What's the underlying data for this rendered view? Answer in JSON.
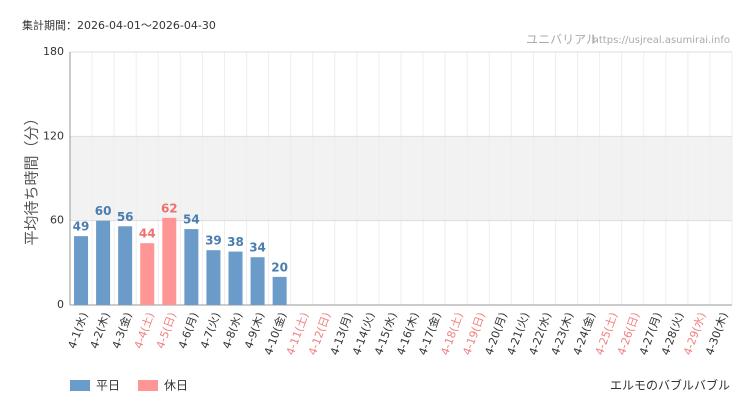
{
  "chart_data": {
    "type": "bar",
    "period": "集計期間：2026-04-01～2026-04-30",
    "site_name": "ユニバリアル",
    "site_url": "https://usjreal.asumirai.info",
    "attraction": "エルモのバブルバブル",
    "y_label": "平均待ち時間（分）",
    "categories": [
      "4-1(水)",
      "4-2(木)",
      "4-3(金)",
      "4-4(土)",
      "4-5(日)",
      "4-6(月)",
      "4-7(火)",
      "4-8(水)",
      "4-9(木)",
      "4-10(金)",
      "4-11(土)",
      "4-12(日)",
      "4-13(月)",
      "4-14(火)",
      "4-15(水)",
      "4-16(木)",
      "4-17(金)",
      "4-18(土)",
      "4-19(日)",
      "4-20(月)",
      "4-21(火)",
      "4-22(水)",
      "4-23(木)",
      "4-24(金)",
      "4-25(土)",
      "4-26(日)",
      "4-27(月)",
      "4-28(火)",
      "4-29(水)",
      "4-30(木)"
    ],
    "category_label_colors": [
      "#333",
      "#333",
      "#333",
      "#f08080",
      "#f08080",
      "#333",
      "#333",
      "#333",
      "#333",
      "#333",
      "#f08080",
      "#f08080",
      "#333",
      "#333",
      "#333",
      "#333",
      "#333",
      "#f08080",
      "#f08080",
      "#333",
      "#333",
      "#333",
      "#333",
      "#333",
      "#f08080",
      "#f08080",
      "#333",
      "#333",
      "#f08080",
      "#333"
    ],
    "series": [
      {
        "name": "平日",
        "color": "#6b9bc8",
        "label_color": "#4a7db0",
        "values": [
          49,
          60,
          56,
          null,
          null,
          54,
          39,
          38,
          34,
          20,
          null,
          null,
          null,
          null,
          null,
          null,
          null,
          null,
          null,
          null,
          null,
          null,
          null,
          null,
          null,
          null,
          null,
          null,
          null,
          null
        ]
      },
      {
        "name": "休日",
        "color": "#ff9696",
        "label_color": "#f07070",
        "values": [
          null,
          null,
          null,
          44,
          62,
          null,
          null,
          null,
          null,
          null,
          null,
          null,
          null,
          null,
          null,
          null,
          null,
          null,
          null,
          null,
          null,
          null,
          null,
          null,
          null,
          null,
          null,
          null,
          null,
          null
        ]
      }
    ],
    "ylim": [
      0,
      180
    ],
    "yticks": [
      0,
      60,
      120,
      180
    ],
    "grid": true,
    "shaded_range": [
      60,
      120
    ]
  }
}
